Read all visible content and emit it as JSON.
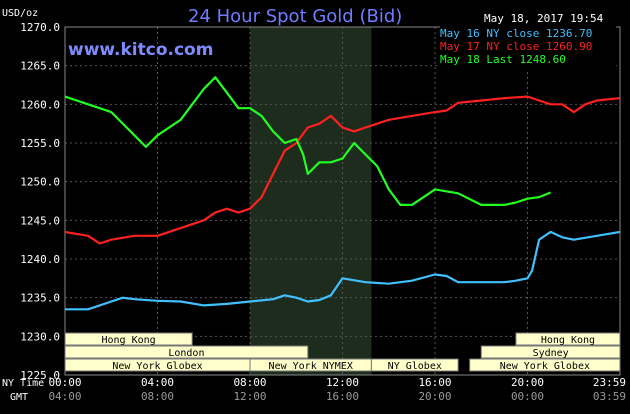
{
  "header": {
    "unit": "USD/oz",
    "title": "24 Hour Spot Gold (Bid)",
    "timestamp": "May 18, 2017 19:54",
    "website": "www.kitco.com"
  },
  "colors": {
    "background": "#000000",
    "grid": "#555555",
    "session_shade": "#1e2c1e",
    "series": [
      "#40c0ff",
      "#ff2020",
      "#20ff20"
    ],
    "market_box": "#ffffcc"
  },
  "chart_data": {
    "type": "line",
    "ylim": [
      1225,
      1270
    ],
    "yticks": [
      "1270.0",
      "1265.0",
      "1260.0",
      "1255.0",
      "1250.0",
      "1245.0",
      "1240.0",
      "1235.0",
      "1230.0",
      "1225.0"
    ],
    "ytick_values": [
      1270,
      1265,
      1260,
      1255,
      1250,
      1245,
      1240,
      1235,
      1230,
      1225
    ],
    "xlim": [
      0,
      24
    ],
    "xticks": [
      "00:00",
      "04:00",
      "08:00",
      "12:00",
      "16:00",
      "20:00",
      "23:59"
    ],
    "xtick_values": [
      0,
      4,
      8,
      12,
      16,
      20,
      24
    ],
    "xticks_gmt": [
      "04:00",
      "08:00",
      "12:00",
      "16:00",
      "20:00",
      "00:00",
      "03:59"
    ],
    "x_row_labels": [
      "NY Time",
      "GMT"
    ],
    "shaded_session": [
      8,
      13.25
    ],
    "grid": true,
    "legend": [
      "May 16 NY close 1236.70",
      "May 17 NY close 1260.90",
      "May 18 Last 1248.60"
    ],
    "series": [
      {
        "name": "May 16 NY close 1236.70",
        "x": [
          0,
          1,
          2,
          2.5,
          3,
          4,
          5,
          6,
          7,
          8,
          9,
          9.5,
          10,
          10.5,
          11,
          11.5,
          12,
          13,
          14,
          15,
          16,
          16.5,
          17,
          18,
          19,
          19.5,
          20,
          20.2,
          20.5,
          21,
          21.5,
          22,
          23,
          24
        ],
        "y": [
          1233.5,
          1233.5,
          1234.5,
          1235,
          1234.8,
          1234.6,
          1234.5,
          1234,
          1234.2,
          1234.5,
          1234.8,
          1235.3,
          1235,
          1234.5,
          1234.7,
          1235.3,
          1237.5,
          1237,
          1236.8,
          1237.2,
          1238,
          1237.8,
          1237,
          1237,
          1237,
          1237.2,
          1237.5,
          1238.5,
          1242.5,
          1243.5,
          1242.8,
          1242.5,
          1243,
          1243.5
        ]
      },
      {
        "name": "May 17 NY close 1260.90",
        "x": [
          0,
          1,
          1.5,
          2,
          3,
          4,
          4.5,
          5,
          6,
          6.5,
          7,
          7.5,
          8,
          8.5,
          9,
          9.5,
          10,
          10.5,
          11,
          11.5,
          12,
          12.5,
          13,
          14,
          15,
          16,
          16.5,
          17,
          18,
          19,
          20,
          20.5,
          21,
          21.5,
          22,
          22.5,
          23,
          24
        ],
        "y": [
          1243.5,
          1243,
          1242,
          1242.5,
          1243,
          1243,
          1243.5,
          1244,
          1245,
          1246,
          1246.5,
          1246,
          1246.5,
          1248,
          1251,
          1254,
          1255,
          1257,
          1257.5,
          1258.5,
          1257,
          1256.5,
          1257,
          1258,
          1258.5,
          1259,
          1259.2,
          1260.2,
          1260.5,
          1260.8,
          1261,
          1260.5,
          1260,
          1260,
          1259,
          1260,
          1260.5,
          1260.8
        ]
      },
      {
        "name": "May 18 Last 1248.60",
        "x": [
          0,
          1,
          2,
          3,
          3.5,
          4,
          5,
          5.5,
          6,
          6.5,
          7,
          7.5,
          8,
          8.5,
          9,
          9.5,
          10,
          10.3,
          10.5,
          11,
          11.5,
          12,
          12.5,
          13,
          13.5,
          14,
          14.5,
          15,
          16,
          17,
          18,
          19,
          19.5,
          20,
          20.5,
          21
        ],
        "y": [
          1261,
          1260,
          1259,
          1256,
          1254.5,
          1256,
          1258,
          1260,
          1262,
          1263.5,
          1261.5,
          1259.5,
          1259.5,
          1258.5,
          1256.5,
          1255,
          1255.5,
          1253.5,
          1251,
          1252.5,
          1252.5,
          1253,
          1255,
          1253.5,
          1252,
          1249,
          1247,
          1247,
          1249,
          1248.5,
          1247,
          1247,
          1247.3,
          1247.8,
          1248,
          1248.6
        ]
      }
    ]
  },
  "markets": [
    {
      "label": "Hong Kong",
      "start": 0,
      "end": 5.5,
      "row": 0
    },
    {
      "label": "London",
      "start": 0,
      "end": 10.5,
      "row": 1
    },
    {
      "label": "New York Globex",
      "start": 0,
      "end": 8,
      "row": 2
    },
    {
      "label": "New York NYMEX",
      "start": 8,
      "end": 13.25,
      "row": 2
    },
    {
      "label": "NY Globex",
      "start": 13.25,
      "end": 17,
      "row": 2
    },
    {
      "label": "Hong Kong",
      "start": 19.5,
      "end": 24,
      "row": 0
    },
    {
      "label": "Sydney",
      "start": 18,
      "end": 24,
      "row": 1
    },
    {
      "label": "New York Globex",
      "start": 17.5,
      "end": 24,
      "row": 2
    }
  ]
}
